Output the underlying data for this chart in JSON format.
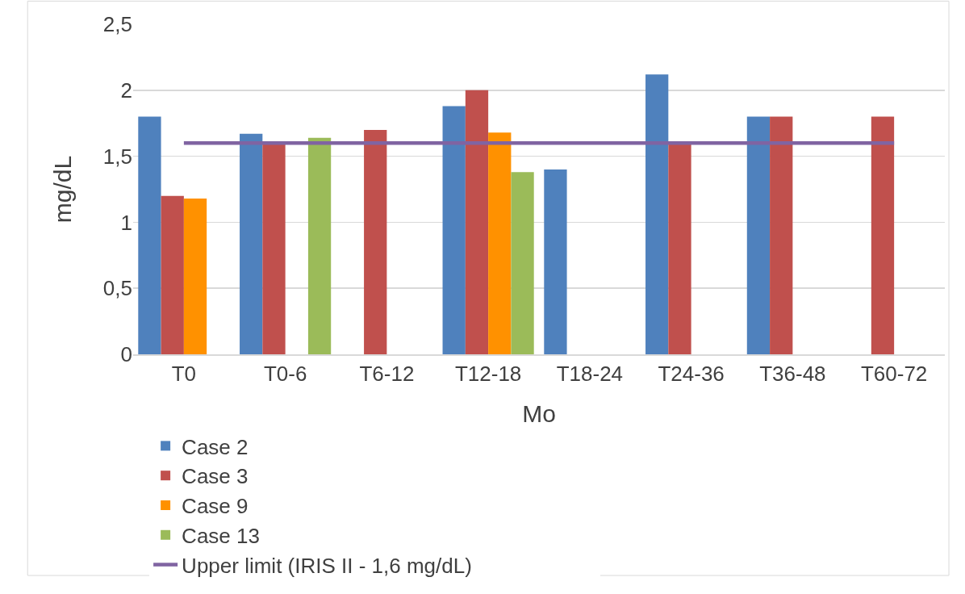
{
  "chart_data": {
    "type": "bar",
    "xlabel": "Mo",
    "ylabel": "mg/dL",
    "categories": [
      "T0",
      "T0-6",
      "T6-12",
      "T12-18",
      "T18-24",
      "T24-36",
      "T36-48",
      "T60-72"
    ],
    "series": [
      {
        "name": "Case 2",
        "color": "#4f81bd",
        "values": [
          1.8,
          1.67,
          null,
          1.88,
          1.4,
          2.12,
          1.8,
          null
        ]
      },
      {
        "name": "Case 3",
        "color": "#c0504d",
        "values": [
          1.2,
          1.6,
          1.7,
          2.0,
          null,
          1.6,
          1.8,
          1.8
        ]
      },
      {
        "name": "Case 9",
        "color": "#ff9100",
        "values": [
          1.18,
          null,
          null,
          1.68,
          null,
          null,
          null,
          null
        ]
      },
      {
        "name": "Case 13",
        "color": "#9bbb59",
        "values": [
          null,
          1.64,
          null,
          1.38,
          null,
          null,
          null,
          null
        ]
      },
      {
        "name": "Upper limit (IRIS II - 1,6 mg/dL)",
        "type": "line",
        "color": "#8064a2",
        "values": [
          1.6,
          1.6,
          1.6,
          1.6,
          1.6,
          1.6,
          1.6,
          1.6
        ]
      }
    ],
    "ylim": [
      0,
      2.5
    ],
    "yticks": [
      0,
      {
        "value": 0.5,
        "label": "0,5"
      },
      1,
      {
        "value": 1.5,
        "label": "1,5"
      },
      2,
      {
        "value": 2.5,
        "label": "2,5"
      }
    ],
    "grid": "y",
    "legend": "bottom",
    "marker": "none",
    "line_style": "solid"
  }
}
